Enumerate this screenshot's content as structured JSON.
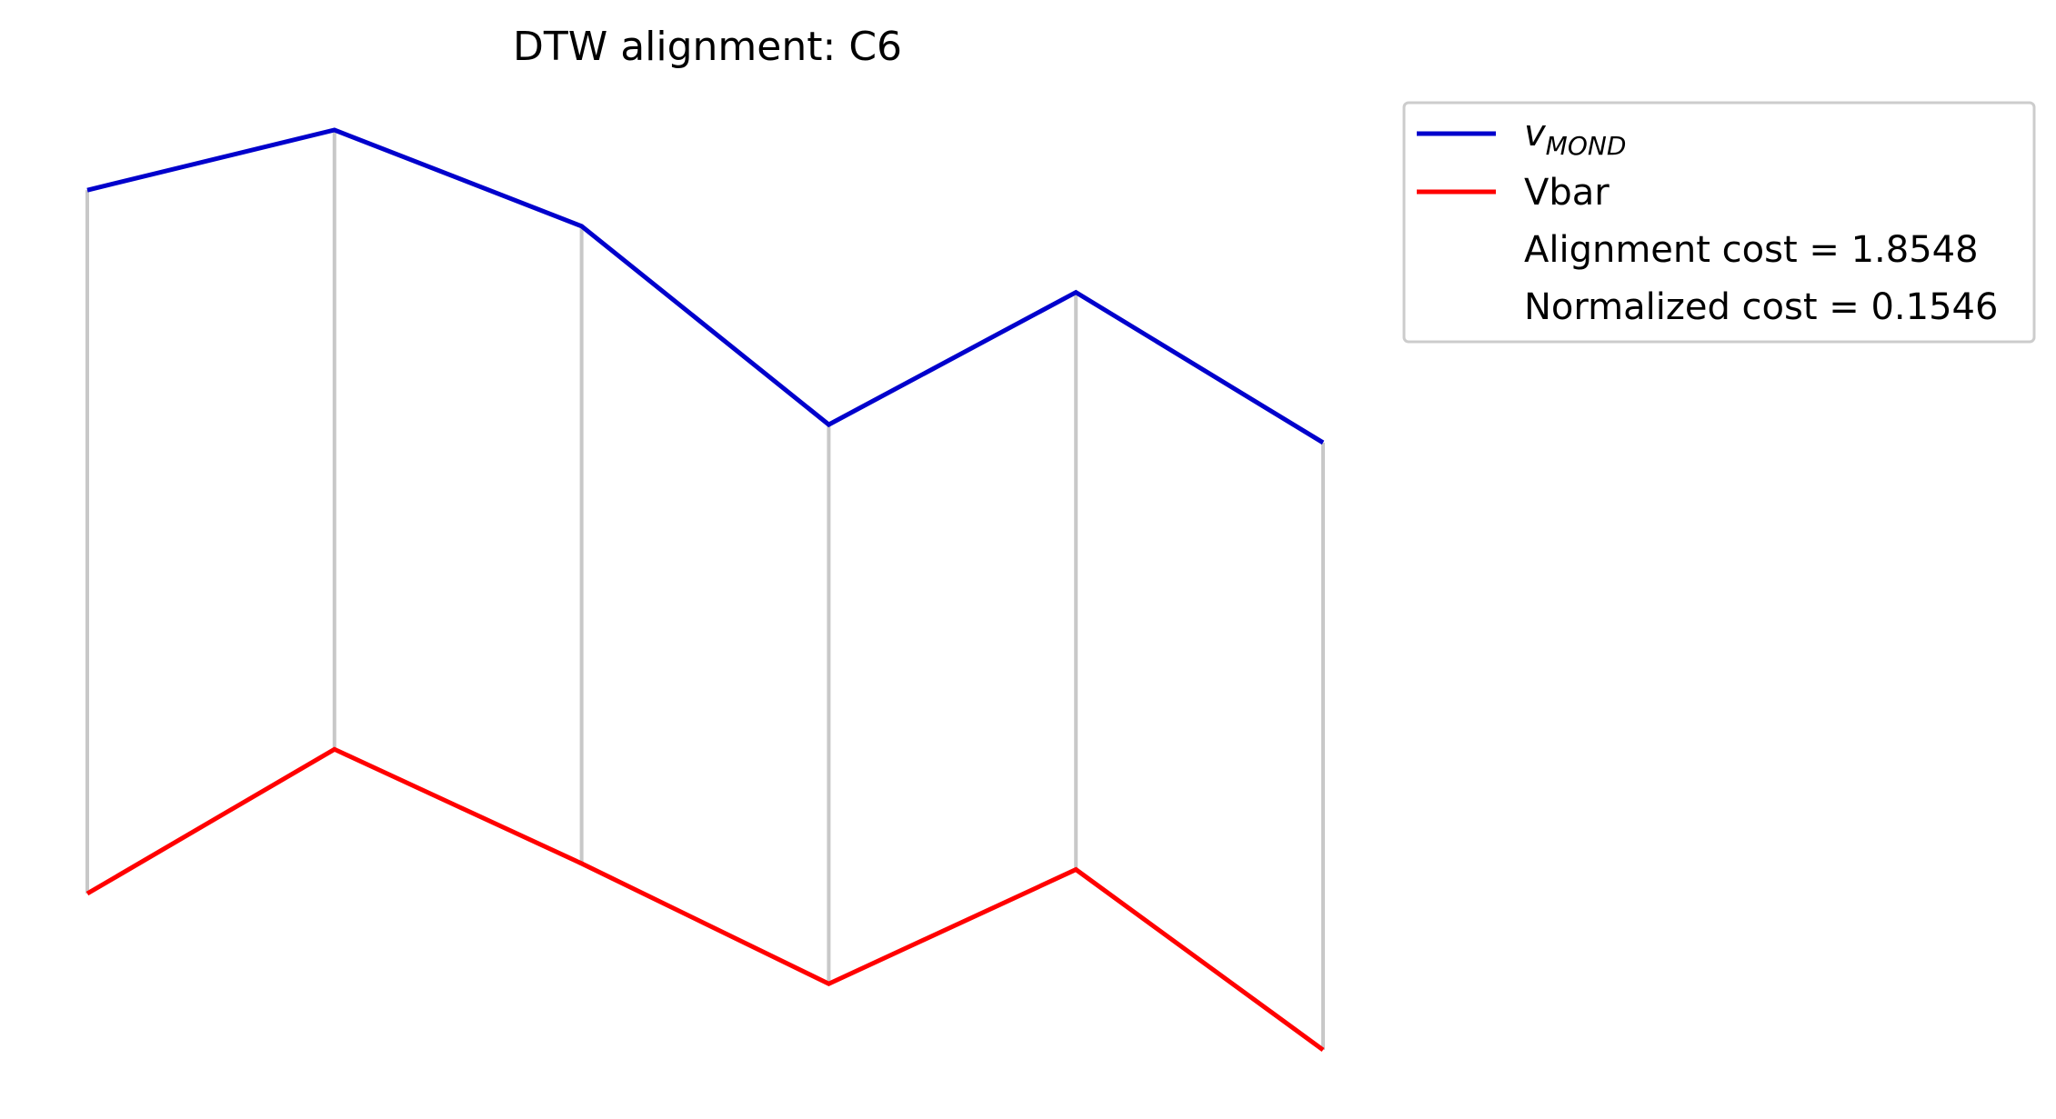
{
  "chart_data": {
    "type": "line",
    "title": "DTW alignment: C6",
    "xlabel": "",
    "ylabel": "",
    "axes_visible": false,
    "grid": false,
    "legend_position": "top-right",
    "x": [
      0,
      1,
      2,
      3,
      4,
      5
    ],
    "series": [
      {
        "name": "v_MOND",
        "name_main": "v",
        "name_sub": "MOND",
        "color": "#0000cc",
        "values": [
          0.9,
          1.0,
          0.84,
          0.51,
          0.73,
          0.48
        ]
      },
      {
        "name": "Vbar",
        "color": "#ff0000",
        "values": [
          -0.27,
          -0.03,
          -0.22,
          -0.42,
          -0.23,
          -0.53
        ]
      }
    ],
    "alignment_color": "#c8c8c8",
    "alignment_pairs": [
      [
        0,
        0
      ],
      [
        1,
        1
      ],
      [
        2,
        2
      ],
      [
        3,
        3
      ],
      [
        4,
        4
      ],
      [
        5,
        5
      ]
    ],
    "ylim": [
      -0.53,
      1.0
    ],
    "annotations": [
      "Alignment cost = 1.8548",
      "Normalized cost = 0.1546"
    ]
  }
}
